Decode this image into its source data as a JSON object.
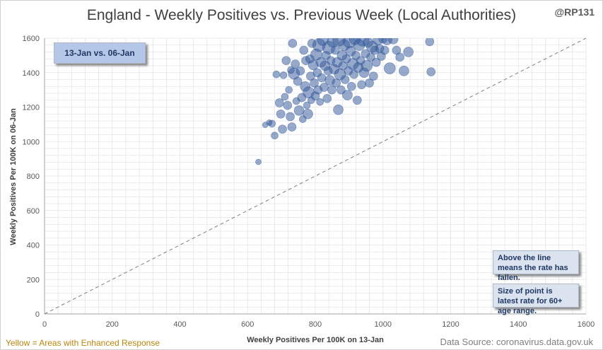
{
  "title": "England - Weekly Positives vs. Previous Week (Local Authorities)",
  "handle": "@RP131",
  "date_label": "13-Jan vs. 06-Jan",
  "notes": {
    "line_meaning": "Above the line means the rate has fallen.",
    "point_size": "Size of point is latest rate for 60+ age range."
  },
  "footer": {
    "left": "Yellow = Areas with Enhanced Response",
    "right": "Data Source: coronavirus.data.gov.uk"
  },
  "colors": {
    "points": "#2f5597",
    "reference_line": "#808080",
    "grid": "#e4e4e4"
  },
  "chart_data": {
    "type": "scatter",
    "xlabel": "Weekly Positives Per 100K on 13-Jan",
    "ylabel": "Weekly Positives Per 100K on 06-Jan",
    "xlim": [
      0,
      1600
    ],
    "ylim": [
      0,
      1600
    ],
    "x_ticks": [
      0,
      200,
      400,
      600,
      800,
      1000,
      1200,
      1400,
      1600
    ],
    "y_ticks": [
      0,
      200,
      400,
      600,
      800,
      1000,
      1200,
      1400,
      1600
    ],
    "grid": true,
    "reference_line": {
      "from": [
        0,
        0
      ],
      "to": [
        1600,
        1600
      ],
      "style": "dashed"
    },
    "points": [
      [
        632,
        882,
        4
      ],
      [
        652,
        1097,
        4
      ],
      [
        664,
        1110,
        4
      ],
      [
        672,
        1104,
        5
      ],
      [
        680,
        1035,
        5
      ],
      [
        685,
        1390,
        5
      ],
      [
        694,
        1225,
        6
      ],
      [
        698,
        1160,
        6
      ],
      [
        703,
        1072,
        6
      ],
      [
        706,
        1385,
        5
      ],
      [
        710,
        1260,
        5
      ],
      [
        714,
        1470,
        6
      ],
      [
        718,
        1210,
        6
      ],
      [
        722,
        1300,
        5
      ],
      [
        726,
        1145,
        6
      ],
      [
        728,
        1415,
        5
      ],
      [
        731,
        1085,
        6
      ],
      [
        733,
        1570,
        6
      ],
      [
        737,
        1395,
        8
      ],
      [
        741,
        1450,
        6
      ],
      [
        744,
        1235,
        5
      ],
      [
        748,
        1350,
        6
      ],
      [
        752,
        1180,
        7
      ],
      [
        756,
        1410,
        6
      ],
      [
        760,
        1255,
        6
      ],
      [
        763,
        1130,
        5
      ],
      [
        766,
        1530,
        6
      ],
      [
        770,
        1320,
        7
      ],
      [
        772,
        1470,
        6
      ],
      [
        775,
        1210,
        5
      ],
      [
        778,
        1160,
        7
      ],
      [
        780,
        1285,
        8
      ],
      [
        784,
        1480,
        6
      ],
      [
        786,
        1380,
        6
      ],
      [
        788,
        1240,
        5
      ],
      [
        790,
        1570,
        6
      ],
      [
        794,
        1445,
        7
      ],
      [
        797,
        1340,
        6
      ],
      [
        800,
        1265,
        6
      ],
      [
        803,
        1505,
        8
      ],
      [
        806,
        1400,
        6
      ],
      [
        808,
        1300,
        6
      ],
      [
        811,
        1560,
        9
      ],
      [
        814,
        1230,
        5
      ],
      [
        817,
        1460,
        7
      ],
      [
        819,
        1370,
        6
      ],
      [
        822,
        1590,
        8
      ],
      [
        826,
        1315,
        6
      ],
      [
        829,
        1440,
        7
      ],
      [
        832,
        1500,
        6
      ],
      [
        835,
        1250,
        6
      ],
      [
        838,
        1410,
        6
      ],
      [
        840,
        1545,
        9
      ],
      [
        843,
        1355,
        7
      ],
      [
        846,
        1470,
        6
      ],
      [
        849,
        1300,
        6
      ],
      [
        852,
        1580,
        8
      ],
      [
        856,
        1420,
        7
      ],
      [
        859,
        1530,
        6
      ],
      [
        862,
        1340,
        6
      ],
      [
        865,
        1460,
        7
      ],
      [
        868,
        1185,
        7
      ],
      [
        870,
        1590,
        9
      ],
      [
        873,
        1390,
        8
      ],
      [
        876,
        1300,
        6
      ],
      [
        879,
        1500,
        7
      ],
      [
        882,
        1440,
        6
      ],
      [
        885,
        1560,
        8
      ],
      [
        888,
        1360,
        6
      ],
      [
        892,
        1480,
        6
      ],
      [
        895,
        1270,
        7
      ],
      [
        898,
        1410,
        6
      ],
      [
        901,
        1580,
        9
      ],
      [
        904,
        1525,
        7
      ],
      [
        907,
        1320,
        6
      ],
      [
        911,
        1450,
        8
      ],
      [
        914,
        1390,
        6
      ],
      [
        917,
        1595,
        8
      ],
      [
        920,
        1500,
        6
      ],
      [
        924,
        1240,
        6
      ],
      [
        927,
        1430,
        7
      ],
      [
        930,
        1560,
        8
      ],
      [
        934,
        1470,
        6
      ],
      [
        937,
        1330,
        6
      ],
      [
        940,
        1590,
        9
      ],
      [
        944,
        1400,
        7
      ],
      [
        948,
        1510,
        6
      ],
      [
        952,
        1440,
        8
      ],
      [
        956,
        1575,
        7
      ],
      [
        960,
        1340,
        6
      ],
      [
        964,
        1490,
        6
      ],
      [
        968,
        1550,
        8
      ],
      [
        972,
        1380,
        6
      ],
      [
        976,
        1530,
        6
      ],
      [
        980,
        1460,
        6
      ],
      [
        985,
        1590,
        7
      ],
      [
        990,
        1540,
        6
      ],
      [
        995,
        1495,
        6
      ],
      [
        1000,
        1595,
        6
      ],
      [
        1005,
        1530,
        6
      ],
      [
        1012,
        1590,
        7
      ],
      [
        1020,
        1425,
        8
      ],
      [
        1030,
        1595,
        7
      ],
      [
        1040,
        1530,
        6
      ],
      [
        1050,
        1490,
        6
      ],
      [
        1062,
        1410,
        7
      ],
      [
        1075,
        1520,
        7
      ],
      [
        1138,
        1580,
        6
      ],
      [
        1142,
        1405,
        6
      ]
    ]
  }
}
